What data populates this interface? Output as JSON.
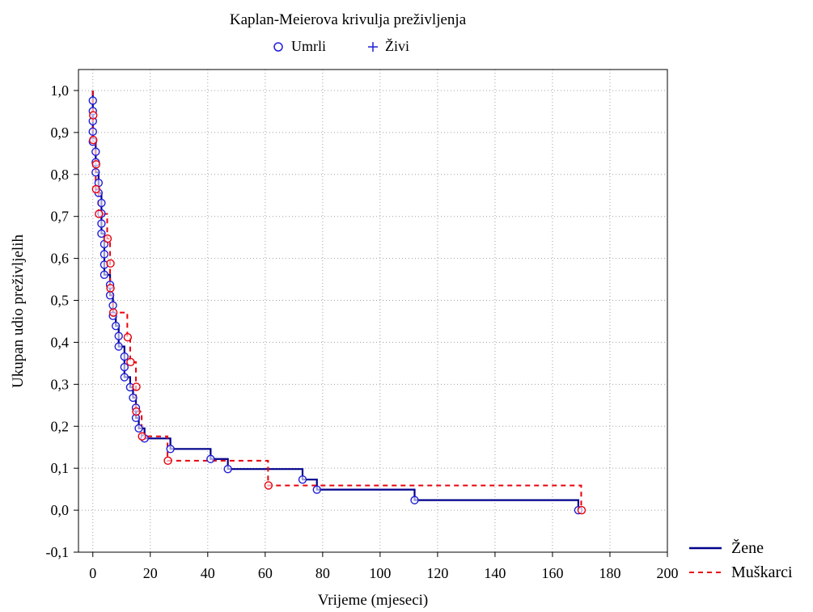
{
  "colors": {
    "zene": "#00008b",
    "muskarci": "#e8000b",
    "umrli_marker": "#1f1fd9",
    "zivi_marker": "#1f1fd9",
    "frame": "#000000",
    "grid": "#a0a0a0"
  },
  "chart_data": {
    "type": "line",
    "title": "Kaplan-Meierova krivulja preživljenja",
    "xlabel": "Vrijeme (mjeseci)",
    "ylabel": "Ukupan udio preživljelih",
    "xlim": [
      -5,
      200
    ],
    "ylim": [
      -0.1,
      1.05
    ],
    "x_ticks": [
      "0",
      "20",
      "40",
      "60",
      "80",
      "100",
      "120",
      "140",
      "160",
      "180",
      "200"
    ],
    "y_ticks": [
      "-0,1",
      "0,0",
      "0,1",
      "0,2",
      "0,3",
      "0,4",
      "0,5",
      "0,6",
      "0,7",
      "0,8",
      "0,9",
      "1,0"
    ],
    "grid": true,
    "marker_legend": [
      {
        "label": "Umrli",
        "marker": "circle"
      },
      {
        "label": "Živi",
        "marker": "plus"
      }
    ],
    "series": [
      {
        "name": "Žene",
        "style": "solid",
        "steps": [
          [
            0,
            1.0
          ],
          [
            0,
            0.976
          ],
          [
            0,
            0.951
          ],
          [
            0,
            0.927
          ],
          [
            0,
            0.902
          ],
          [
            0,
            0.878
          ],
          [
            1,
            0.854
          ],
          [
            1,
            0.829
          ],
          [
            1,
            0.805
          ],
          [
            2,
            0.78
          ],
          [
            2,
            0.756
          ],
          [
            3,
            0.732
          ],
          [
            3,
            0.707
          ],
          [
            3,
            0.683
          ],
          [
            3,
            0.659
          ],
          [
            4,
            0.634
          ],
          [
            4,
            0.61
          ],
          [
            4,
            0.585
          ],
          [
            4,
            0.561
          ],
          [
            6,
            0.537
          ],
          [
            6,
            0.512
          ],
          [
            7,
            0.488
          ],
          [
            7,
            0.463
          ],
          [
            8,
            0.439
          ],
          [
            9,
            0.415
          ],
          [
            9,
            0.39
          ],
          [
            11,
            0.366
          ],
          [
            11,
            0.341
          ],
          [
            11,
            0.317
          ],
          [
            13,
            0.293
          ],
          [
            14,
            0.268
          ],
          [
            15,
            0.244
          ],
          [
            15,
            0.22
          ],
          [
            16,
            0.195
          ],
          [
            18,
            0.171
          ],
          [
            27,
            0.146
          ],
          [
            41,
            0.122
          ],
          [
            47,
            0.098
          ],
          [
            73,
            0.073
          ],
          [
            78,
            0.049
          ],
          [
            112,
            0.024
          ],
          [
            169,
            0.0
          ]
        ],
        "end_x": 169
      },
      {
        "name": "Muškarci",
        "style": "dashed",
        "steps": [
          [
            0,
            1.0
          ],
          [
            0,
            0.941
          ],
          [
            0,
            0.882
          ],
          [
            1,
            0.824
          ],
          [
            1,
            0.765
          ],
          [
            2,
            0.706
          ],
          [
            5,
            0.647
          ],
          [
            6,
            0.588
          ],
          [
            6,
            0.529
          ],
          [
            7,
            0.471
          ],
          [
            12,
            0.412
          ],
          [
            13,
            0.353
          ],
          [
            15,
            0.294
          ],
          [
            15,
            0.235
          ],
          [
            17,
            0.176
          ],
          [
            26,
            0.118
          ],
          [
            61,
            0.059
          ],
          [
            170,
            0.0
          ]
        ],
        "end_x": 170
      }
    ]
  }
}
